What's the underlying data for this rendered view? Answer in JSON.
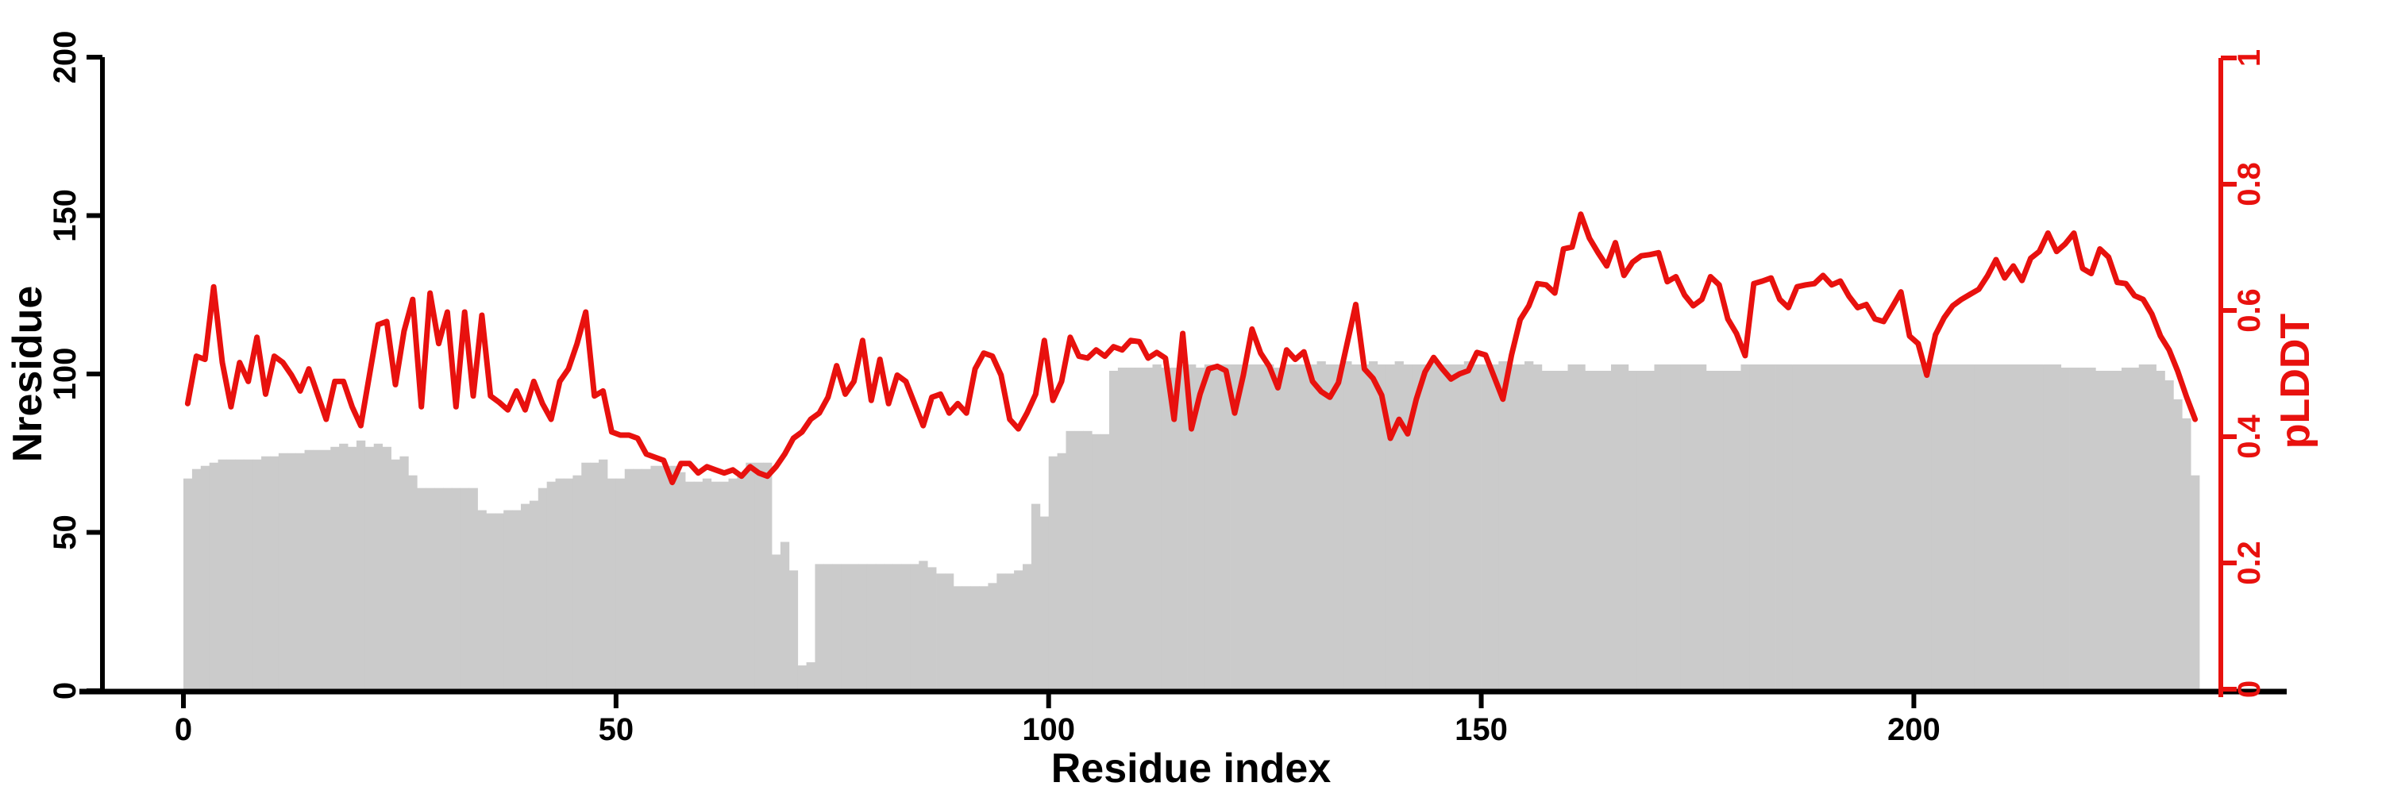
{
  "chart_data": {
    "type": "bar+line",
    "title": "",
    "xlabel": "Residue index",
    "ylabel_left": "Nresidue",
    "ylabel_right": "pLDDT",
    "x_ticks": [
      "0",
      "50",
      "100",
      "150",
      "200"
    ],
    "x_tick_values": [
      0,
      50,
      100,
      150,
      200
    ],
    "x_range": [
      0,
      233
    ],
    "y_left_ticks": [
      "0",
      "50",
      "100",
      "150",
      "200"
    ],
    "y_left_tick_values": [
      0,
      50,
      100,
      150,
      200
    ],
    "y_left_range": [
      0,
      200
    ],
    "y_right_ticks": [
      "0",
      "0.2",
      "0.4",
      "0.6",
      "0.8",
      "1"
    ],
    "y_right_tick_values": [
      0,
      0.2,
      0.4,
      0.6,
      0.8,
      1
    ],
    "y_right_range": [
      0,
      1
    ],
    "grid": false,
    "legend": "none",
    "n_points": 233,
    "colors": {
      "bar": "#cbcbcb",
      "line": "#e8110e",
      "axis_left": "#000000",
      "axis_bottom": "#000000",
      "axis_right": "#e8110e"
    },
    "series": [
      {
        "name": "Nresidue",
        "type": "bar",
        "axis": "left",
        "color": "#cbcbcb",
        "values": [
          67,
          70,
          71,
          72,
          73,
          73,
          73,
          73,
          73,
          74,
          74,
          75,
          75,
          75,
          76,
          76,
          76,
          77,
          78,
          77,
          79,
          77,
          78,
          77,
          73,
          74,
          68,
          64,
          64,
          64,
          64,
          64,
          64,
          64,
          57,
          56,
          56,
          57,
          57,
          59,
          60,
          64,
          66,
          67,
          67,
          68,
          72,
          72,
          73,
          67,
          67,
          70,
          70,
          70,
          71,
          71,
          71,
          69,
          66,
          66,
          67,
          66,
          66,
          67,
          68,
          72,
          72,
          72,
          43,
          47,
          38,
          8,
          9,
          40,
          40,
          40,
          40,
          40,
          40,
          40,
          40,
          40,
          40,
          40,
          40,
          41,
          39,
          37,
          37,
          33,
          33,
          33,
          33,
          34,
          37,
          37,
          38,
          40,
          59,
          55,
          74,
          75,
          82,
          82,
          82,
          81,
          81,
          101,
          102,
          102,
          102,
          102,
          103,
          102,
          102,
          103,
          103,
          102,
          103,
          103,
          103,
          103,
          103,
          103,
          103,
          103,
          102,
          103,
          103,
          103,
          103,
          104,
          103,
          103,
          104,
          103,
          103,
          104,
          103,
          103,
          104,
          103,
          103,
          103,
          104,
          103,
          103,
          103,
          104,
          103,
          103,
          103,
          104,
          103,
          103,
          104,
          103,
          101,
          101,
          101,
          103,
          103,
          101,
          101,
          101,
          103,
          103,
          101,
          101,
          101,
          103,
          103,
          103,
          103,
          103,
          103,
          101,
          101,
          101,
          101,
          103,
          103,
          103,
          103,
          103,
          103,
          103,
          103,
          103,
          103,
          103,
          103,
          103,
          103,
          103,
          103,
          103,
          103,
          103,
          103,
          103,
          103,
          103,
          103,
          103,
          103,
          103,
          103,
          103,
          103,
          103,
          103,
          103,
          103,
          103,
          103,
          103,
          102,
          102,
          102,
          102,
          101,
          101,
          101,
          102,
          102,
          103,
          103,
          101,
          98,
          92,
          86,
          68
        ]
      },
      {
        "name": "pLDDT",
        "type": "line",
        "axis": "right",
        "color": "#e8110e",
        "values": [
          0.455,
          0.53,
          0.525,
          0.64,
          0.52,
          0.45,
          0.52,
          0.49,
          0.56,
          0.47,
          0.53,
          0.52,
          0.5,
          0.475,
          0.51,
          0.47,
          0.43,
          0.49,
          0.49,
          0.45,
          0.42,
          0.5,
          0.58,
          0.585,
          0.485,
          0.57,
          0.62,
          0.45,
          0.63,
          0.55,
          0.6,
          0.45,
          0.6,
          0.467,
          0.595,
          0.467,
          0.457,
          0.445,
          0.475,
          0.445,
          0.49,
          0.455,
          0.43,
          0.49,
          0.51,
          0.55,
          0.6,
          0.467,
          0.475,
          0.41,
          0.405,
          0.405,
          0.4,
          0.375,
          0.37,
          0.365,
          0.33,
          0.36,
          0.36,
          0.345,
          0.355,
          0.35,
          0.345,
          0.35,
          0.34,
          0.355,
          0.345,
          0.34,
          0.355,
          0.375,
          0.4,
          0.41,
          0.43,
          0.44,
          0.465,
          0.515,
          0.47,
          0.49,
          0.555,
          0.46,
          0.525,
          0.455,
          0.5,
          0.49,
          0.455,
          0.42,
          0.465,
          0.47,
          0.44,
          0.455,
          0.44,
          0.51,
          0.535,
          0.53,
          0.5,
          0.43,
          0.415,
          0.44,
          0.47,
          0.555,
          0.46,
          0.49,
          0.56,
          0.53,
          0.527,
          0.54,
          0.53,
          0.545,
          0.54,
          0.555,
          0.553,
          0.527,
          0.536,
          0.527,
          0.43,
          0.566,
          0.415,
          0.47,
          0.51,
          0.514,
          0.507,
          0.44,
          0.5,
          0.573,
          0.535,
          0.514,
          0.48,
          0.54,
          0.525,
          0.537,
          0.49,
          0.474,
          0.465,
          0.488,
          0.55,
          0.612,
          0.51,
          0.495,
          0.468,
          0.4,
          0.43,
          0.407,
          0.462,
          0.505,
          0.528,
          0.51,
          0.494,
          0.502,
          0.507,
          0.536,
          0.532,
          0.497,
          0.462,
          0.532,
          0.588,
          0.61,
          0.645,
          0.643,
          0.63,
          0.7,
          0.703,
          0.755,
          0.717,
          0.694,
          0.673,
          0.71,
          0.658,
          0.679,
          0.689,
          0.691,
          0.694,
          0.648,
          0.656,
          0.627,
          0.61,
          0.62,
          0.656,
          0.643,
          0.589,
          0.566,
          0.531,
          0.645,
          0.649,
          0.654,
          0.62,
          0.607,
          0.64,
          0.643,
          0.645,
          0.658,
          0.643,
          0.649,
          0.625,
          0.607,
          0.612,
          0.589,
          0.585,
          0.608,
          0.632,
          0.562,
          0.55,
          0.5,
          0.564,
          0.591,
          0.61,
          0.62,
          0.628,
          0.636,
          0.657,
          0.683,
          0.654,
          0.673,
          0.65,
          0.685,
          0.696,
          0.725,
          0.696,
          0.708,
          0.725,
          0.669,
          0.661,
          0.7,
          0.687,
          0.647,
          0.645,
          0.626,
          0.62,
          0.597,
          0.562,
          0.54,
          0.506,
          0.466,
          0.43
        ]
      }
    ]
  }
}
